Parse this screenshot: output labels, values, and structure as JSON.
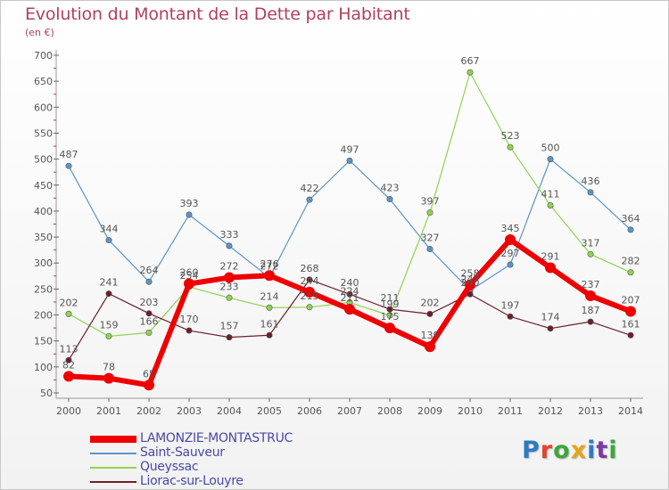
{
  "title": "Evolution du Montant de la Dette par Habitant",
  "unit_label": "(en €)",
  "logo_text": "Proxiti",
  "logo_colors": [
    "#2e7ac2",
    "#e8412c",
    "#3fa63a",
    "#e8a31a",
    "#2e7ac2",
    "#7a3aa0",
    "#3fa63a"
  ],
  "chart_data": {
    "type": "line",
    "title": "Evolution du Montant de la Dette par Habitant",
    "ylabel": "(en €)",
    "xlabel": "",
    "x": [
      "2000",
      "2001",
      "2002",
      "2003",
      "2004",
      "2005",
      "2006",
      "2007",
      "2008",
      "2009",
      "2010",
      "2011",
      "2012",
      "2013",
      "2014"
    ],
    "ylim": [
      50,
      700
    ],
    "yticks": [
      50,
      100,
      150,
      200,
      250,
      300,
      350,
      400,
      450,
      500,
      550,
      600,
      650,
      700
    ],
    "grid": false,
    "legend_position": "bottom-left",
    "series": [
      {
        "name": "LAMONZIE-MONTASTRUC",
        "color": "#ee0000",
        "width": 6,
        "values": [
          82,
          78,
          65,
          260,
          272,
          276,
          244,
          211,
          175,
          139,
          258,
          345,
          291,
          237,
          207
        ]
      },
      {
        "name": "Saint-Sauveur",
        "color": "#5b95c8",
        "width": 1.2,
        "values": [
          487,
          344,
          264,
          393,
          333,
          272,
          422,
          497,
          423,
          327,
          247,
          297,
          500,
          436,
          364
        ]
      },
      {
        "name": "Queyssac",
        "color": "#8ed450",
        "width": 1.2,
        "values": [
          202,
          159,
          166,
          254,
          233,
          214,
          215,
          224,
          199,
          397,
          667,
          523,
          411,
          317,
          282
        ]
      },
      {
        "name": "Liorac-sur-Louyre",
        "color": "#6e1e2a",
        "width": 1.2,
        "values": [
          113,
          241,
          203,
          170,
          157,
          161,
          268,
          240,
          211,
          202,
          240,
          197,
          174,
          187,
          161
        ]
      }
    ]
  }
}
